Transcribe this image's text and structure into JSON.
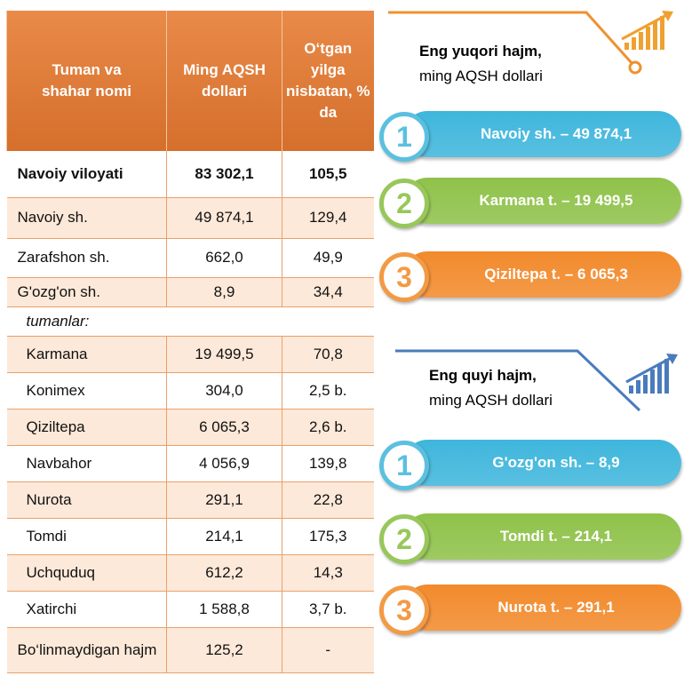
{
  "table": {
    "header": [
      "Tuman va shahar nomi",
      "Ming AQSH dollari",
      "O‘tgan yilga nisbatan, % da"
    ],
    "total": [
      "Navoiy viloyati",
      "83 302,1",
      "105,5"
    ],
    "cities": [
      [
        "Navoiy sh.",
        "49 874,1",
        "129,4"
      ],
      [
        "Zarafshon sh.",
        "662,0",
        "49,9"
      ],
      [
        "G'ozg'on sh.",
        "8,9",
        "34,4"
      ]
    ],
    "districts_label": "tumanlar:",
    "districts": [
      [
        "Karmana",
        "19 499,5",
        "70,8"
      ],
      [
        "Konimex",
        "304,0",
        "2,5 b."
      ],
      [
        "Qiziltepa",
        "6 065,3",
        "2,6 b."
      ],
      [
        "Navbahor",
        "4 056,9",
        "139,8"
      ],
      [
        "Nurota",
        "291,1",
        "22,8"
      ],
      [
        "Tomdi",
        "214,1",
        "175,3"
      ],
      [
        "Uchquduq",
        "612,2",
        "14,3"
      ],
      [
        "Xatirchi",
        "1 588,8",
        "3,7 b."
      ]
    ],
    "undivided": [
      "Bo‘linmaydigan hajm",
      "125,2",
      "-"
    ]
  },
  "top": {
    "title": "Eng yuqori hajm,",
    "subtitle": "ming AQSH dollari",
    "items": [
      {
        "rank": "1",
        "label": "Navoiy sh. – 49 874,1"
      },
      {
        "rank": "2",
        "label": "Karmana t. – 19 499,5"
      },
      {
        "rank": "3",
        "label": "Qiziltepa t. – 6 065,3"
      }
    ]
  },
  "bottom": {
    "title": "Eng quyi hajm,",
    "subtitle": "ming AQSH dollari",
    "items": [
      {
        "rank": "1",
        "label": "G'ozg'on sh. – 8,9"
      },
      {
        "rank": "2",
        "label": "Tomdi t. – 214,1"
      },
      {
        "rank": "3",
        "label": "Nurota t. – 291,1"
      }
    ]
  }
}
